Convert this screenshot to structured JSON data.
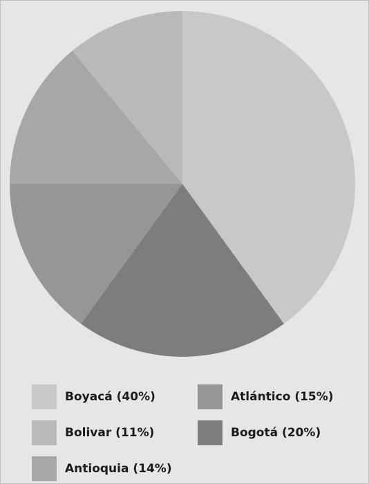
{
  "chart_data": {
    "type": "pie",
    "slices": [
      {
        "label": "Boyacá (40%)",
        "value": 40,
        "color": "#c8c8c8"
      },
      {
        "label": "Bogotá (20%)",
        "value": 20,
        "color": "#7d7d7d"
      },
      {
        "label": "Atlántico (15%)",
        "value": 15,
        "color": "#969696"
      },
      {
        "label": "Antioquia (14%)",
        "value": 14,
        "color": "#a7a7a7"
      },
      {
        "label": "Bolivar (11%)",
        "value": 11,
        "color": "#b9b9b9"
      }
    ],
    "legend": [
      {
        "label": "Boyacá (40%)",
        "color": "#c8c8c8"
      },
      {
        "label": "Bolivar (11%)",
        "color": "#b9b9b9"
      },
      {
        "label": "Antioquia (14%)",
        "color": "#a7a7a7"
      },
      {
        "label": "Atlántico (15%)",
        "color": "#969696"
      },
      {
        "label": "Bogotá (20%)",
        "color": "#7d7d7d"
      }
    ],
    "start_angle_deg": 0,
    "direction": "clockwise",
    "legend_position": "bottom"
  }
}
